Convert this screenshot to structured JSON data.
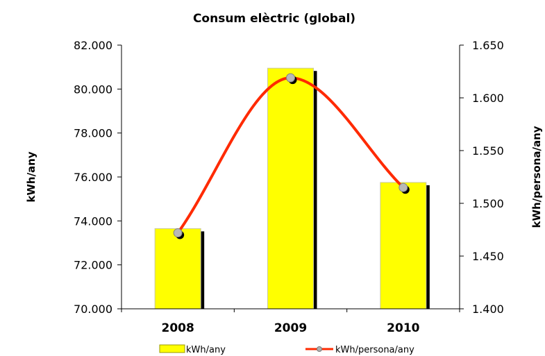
{
  "chart_data": {
    "type": "bar",
    "title": "Consum elèctric (global)",
    "categories": [
      "2008",
      "2009",
      "2010"
    ],
    "series": [
      {
        "name": "kWh/any",
        "type": "bar",
        "axis": "left",
        "values": [
          73650,
          80950,
          75750
        ],
        "color": "#ffff00"
      },
      {
        "name": "kWh/persona/any",
        "type": "line",
        "axis": "right",
        "smooth": true,
        "values": [
          1472,
          1619,
          1515
        ],
        "color": "#ff2a00"
      }
    ],
    "ylabel": "kWh/any",
    "ylim": [
      70000,
      82000
    ],
    "yticks": [
      "70.000",
      "72.000",
      "74.000",
      "76.000",
      "78.000",
      "80.000",
      "82.000"
    ],
    "ylabel_right": "kWh/persona/any",
    "ylim_right": [
      1400,
      1650
    ],
    "yticks_right": [
      "1.400",
      "1.450",
      "1.500",
      "1.550",
      "1.600",
      "1.650"
    ],
    "grid": false,
    "legend_position": "bottom"
  }
}
